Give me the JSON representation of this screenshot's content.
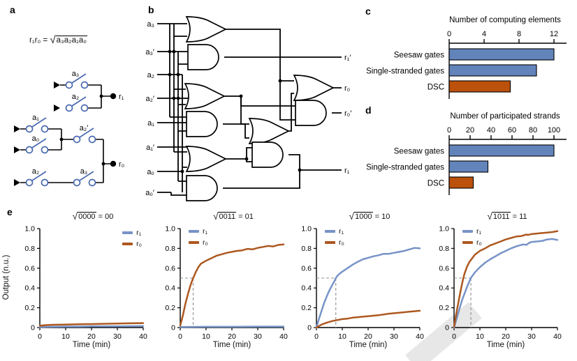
{
  "colors": {
    "bar_blue": "#6384bb",
    "bar_orange": "#bb510b",
    "line_blue": "#7793c7",
    "line_orange": "#ad581f",
    "dashed_gray": "#8f8f8f",
    "switch_blue": "#4a69b0"
  },
  "panels": {
    "a": {
      "label": "a",
      "formula": {
        "lhs": "r₁r₀ =",
        "sqrt": "√",
        "radicand": "a₃a₂a₁a₀"
      },
      "switches": [
        "a₃",
        "a₂",
        "a₁",
        "a₀",
        "a₂′",
        "a₂",
        "a₃"
      ],
      "outputs": [
        "r₁",
        "r₀"
      ]
    },
    "b": {
      "label": "b",
      "inputs": [
        "a₃",
        "a₃′",
        "a₂",
        "a₂′",
        "a₁",
        "a₁′",
        "a₀",
        "a₀′"
      ],
      "outputs": [
        "r₁′",
        "r₀",
        "r₀′",
        "r₁"
      ]
    },
    "c": {
      "label": "c"
    },
    "d": {
      "label": "d"
    },
    "e": {
      "label": "e",
      "legend": [
        "r₁",
        "r₀"
      ]
    }
  },
  "chart_data": [
    {
      "id": "c",
      "type": "bar",
      "orientation": "horizontal",
      "title": "Number of computing elements",
      "ticks": [
        0,
        4,
        8,
        12
      ],
      "axis_max": 13.4,
      "categories": [
        "Seesaw gates",
        "Single-stranded gates",
        "DSC"
      ],
      "values": [
        12,
        10,
        7
      ],
      "bar_colors": [
        "bar_blue",
        "bar_blue",
        "bar_orange"
      ]
    },
    {
      "id": "d",
      "type": "bar",
      "orientation": "horizontal",
      "title": "Number of participated strands",
      "ticks": [
        0,
        20,
        40,
        60,
        80,
        100
      ],
      "axis_max": 112,
      "categories": [
        "Seesaw gates",
        "Single-stranded gates",
        "DSC"
      ],
      "values": [
        100,
        37,
        23
      ],
      "bar_colors": [
        "bar_blue",
        "bar_blue",
        "bar_orange"
      ]
    },
    {
      "id": "e1",
      "type": "line",
      "title": {
        "sqrt": "√",
        "radicand": "0000",
        "eq": " = 00"
      },
      "xlabel": "Time (min)",
      "ylabel": "Output (n.u.)",
      "xlim": [
        0,
        40
      ],
      "ylim": [
        0,
        1
      ],
      "xticks": [
        0,
        10,
        20,
        30,
        40
      ],
      "yticks": [
        0,
        0.2,
        0.4,
        0.6,
        0.8,
        1.0
      ],
      "legend_position": "top-right",
      "t50": null,
      "series": [
        {
          "name": "r₁",
          "color": "line_blue",
          "points": [
            [
              0,
              0.005
            ],
            [
              5,
              0.008
            ],
            [
              10,
              0.01
            ],
            [
              15,
              0.01
            ],
            [
              20,
              0.012
            ],
            [
              25,
              0.012
            ],
            [
              30,
              0.013
            ],
            [
              35,
              0.014
            ],
            [
              40,
              0.015
            ]
          ]
        },
        {
          "name": "r₀",
          "color": "line_orange",
          "points": [
            [
              0,
              0.018
            ],
            [
              2,
              0.024
            ],
            [
              5,
              0.028
            ],
            [
              10,
              0.03
            ],
            [
              15,
              0.033
            ],
            [
              20,
              0.035
            ],
            [
              25,
              0.038
            ],
            [
              30,
              0.04
            ],
            [
              35,
              0.043
            ],
            [
              40,
              0.045
            ]
          ]
        }
      ]
    },
    {
      "id": "e2",
      "type": "line",
      "title": {
        "sqrt": "√",
        "radicand": "0011",
        "eq": " = 01"
      },
      "xlabel": "Time (min)",
      "xlim": [
        0,
        40
      ],
      "ylim": [
        0,
        1
      ],
      "xticks": [
        0,
        10,
        20,
        30,
        40
      ],
      "yticks": [
        0,
        0.2,
        0.4,
        0.6,
        0.8,
        1.0
      ],
      "legend_position": "top-left",
      "t50": 5,
      "series": [
        {
          "name": "r₁",
          "color": "line_blue",
          "points": [
            [
              0,
              0.005
            ],
            [
              10,
              0.008
            ],
            [
              20,
              0.008
            ],
            [
              30,
              0.01
            ],
            [
              40,
              0.01
            ]
          ]
        },
        {
          "name": "r₀",
          "color": "line_orange",
          "points": [
            [
              0,
              0.02
            ],
            [
              1,
              0.12
            ],
            [
              2,
              0.24
            ],
            [
              3,
              0.34
            ],
            [
              4,
              0.43
            ],
            [
              5,
              0.5
            ],
            [
              6,
              0.56
            ],
            [
              7,
              0.61
            ],
            [
              8,
              0.645
            ],
            [
              10,
              0.675
            ],
            [
              12,
              0.7
            ],
            [
              14,
              0.725
            ],
            [
              16,
              0.74
            ],
            [
              18,
              0.755
            ],
            [
              20,
              0.765
            ],
            [
              22,
              0.775
            ],
            [
              24,
              0.78
            ],
            [
              26,
              0.795
            ],
            [
              28,
              0.79
            ],
            [
              30,
              0.805
            ],
            [
              32,
              0.815
            ],
            [
              34,
              0.825
            ],
            [
              36,
              0.82
            ],
            [
              38,
              0.835
            ],
            [
              40,
              0.84
            ]
          ]
        }
      ]
    },
    {
      "id": "e3",
      "type": "line",
      "title": {
        "sqrt": "√",
        "radicand": "1000",
        "eq": " = 10"
      },
      "xlabel": "Time (min)",
      "xlim": [
        0,
        40
      ],
      "ylim": [
        0,
        1
      ],
      "xticks": [
        0,
        10,
        20,
        30,
        40
      ],
      "yticks": [
        0,
        0.2,
        0.4,
        0.6,
        0.8,
        1.0
      ],
      "legend_position": "top-left",
      "t50": 7.5,
      "series": [
        {
          "name": "r₁",
          "color": "line_blue",
          "points": [
            [
              0,
              0
            ],
            [
              1,
              0.09
            ],
            [
              2,
              0.17
            ],
            [
              3,
              0.25
            ],
            [
              4,
              0.315
            ],
            [
              5,
              0.375
            ],
            [
              6,
              0.425
            ],
            [
              7,
              0.47
            ],
            [
              7.5,
              0.5
            ],
            [
              8,
              0.52
            ],
            [
              9,
              0.545
            ],
            [
              10,
              0.565
            ],
            [
              12,
              0.6
            ],
            [
              14,
              0.635
            ],
            [
              16,
              0.665
            ],
            [
              18,
              0.69
            ],
            [
              20,
              0.705
            ],
            [
              22,
              0.72
            ],
            [
              24,
              0.73
            ],
            [
              26,
              0.745
            ],
            [
              28,
              0.745
            ],
            [
              30,
              0.755
            ],
            [
              32,
              0.765
            ],
            [
              34,
              0.775
            ],
            [
              36,
              0.79
            ],
            [
              38,
              0.805
            ],
            [
              40,
              0.8
            ]
          ]
        },
        {
          "name": "r₀",
          "color": "line_orange",
          "points": [
            [
              0,
              0
            ],
            [
              2,
              0.03
            ],
            [
              4,
              0.05
            ],
            [
              6,
              0.065
            ],
            [
              8,
              0.075
            ],
            [
              10,
              0.085
            ],
            [
              12,
              0.09
            ],
            [
              14,
              0.1
            ],
            [
              16,
              0.105
            ],
            [
              18,
              0.11
            ],
            [
              20,
              0.115
            ],
            [
              24,
              0.125
            ],
            [
              28,
              0.14
            ],
            [
              32,
              0.15
            ],
            [
              36,
              0.16
            ],
            [
              40,
              0.17
            ]
          ]
        }
      ]
    },
    {
      "id": "e4",
      "type": "line",
      "title": {
        "sqrt": "√",
        "radicand": "1011",
        "eq": " = 11"
      },
      "xlabel": "Time (min)",
      "xlim": [
        0,
        40
      ],
      "ylim": [
        0,
        1
      ],
      "xticks": [
        0,
        10,
        20,
        30,
        40
      ],
      "yticks": [
        0,
        0.2,
        0.4,
        0.6,
        0.8,
        1.0
      ],
      "legend_position": "top-left",
      "t50": 6.5,
      "series": [
        {
          "name": "r₁",
          "color": "line_blue",
          "points": [
            [
              0,
              0
            ],
            [
              1,
              0.09
            ],
            [
              2,
              0.18
            ],
            [
              3,
              0.27
            ],
            [
              4,
              0.34
            ],
            [
              5,
              0.41
            ],
            [
              6,
              0.47
            ],
            [
              6.5,
              0.5
            ],
            [
              7,
              0.52
            ],
            [
              8,
              0.555
            ],
            [
              10,
              0.61
            ],
            [
              12,
              0.655
            ],
            [
              14,
              0.69
            ],
            [
              16,
              0.72
            ],
            [
              18,
              0.75
            ],
            [
              20,
              0.775
            ],
            [
              22,
              0.8
            ],
            [
              24,
              0.82
            ],
            [
              26,
              0.835
            ],
            [
              27,
              0.84
            ],
            [
              28,
              0.835
            ],
            [
              29,
              0.855
            ],
            [
              30,
              0.865
            ],
            [
              32,
              0.87
            ],
            [
              34,
              0.875
            ],
            [
              36,
              0.89
            ],
            [
              38,
              0.895
            ],
            [
              40,
              0.885
            ]
          ]
        },
        {
          "name": "r₀",
          "color": "line_orange",
          "points": [
            [
              0,
              0.01
            ],
            [
              1,
              0.16
            ],
            [
              2,
              0.3
            ],
            [
              3,
              0.43
            ],
            [
              3.5,
              0.49
            ],
            [
              4,
              0.54
            ],
            [
              5,
              0.615
            ],
            [
              6,
              0.665
            ],
            [
              7,
              0.7
            ],
            [
              8,
              0.735
            ],
            [
              10,
              0.775
            ],
            [
              12,
              0.8
            ],
            [
              14,
              0.83
            ],
            [
              16,
              0.85
            ],
            [
              18,
              0.87
            ],
            [
              20,
              0.89
            ],
            [
              22,
              0.905
            ],
            [
              24,
              0.92
            ],
            [
              26,
              0.925
            ],
            [
              28,
              0.94
            ],
            [
              28.5,
              0.935
            ],
            [
              30,
              0.945
            ],
            [
              32,
              0.95
            ],
            [
              34,
              0.955
            ],
            [
              36,
              0.96
            ],
            [
              38,
              0.965
            ],
            [
              40,
              0.975
            ]
          ]
        }
      ]
    }
  ]
}
